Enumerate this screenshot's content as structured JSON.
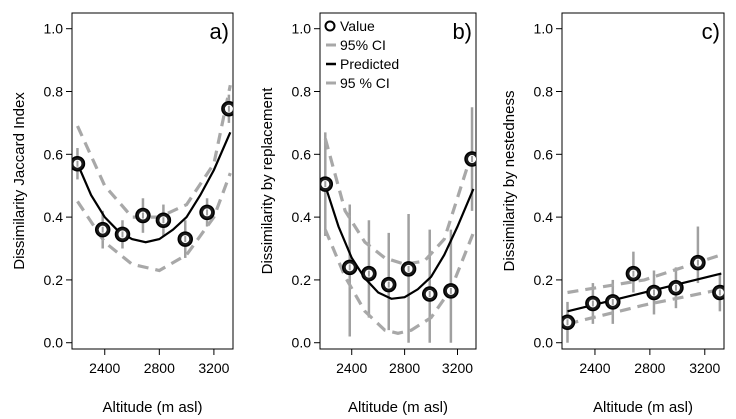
{
  "chart_data": [
    {
      "type": "scatter",
      "panel_label": "a)",
      "xlabel": "Altitude (m asl)",
      "ylabel": "Dissimilarity Jaccard Index",
      "xlim": [
        2160,
        3340
      ],
      "ylim": [
        -0.02,
        1.05
      ],
      "xticks": [
        2400,
        2800,
        3200
      ],
      "yticks": [
        0.0,
        0.2,
        0.4,
        0.6,
        0.8,
        1.0
      ],
      "ytick_labels": [
        "0.0",
        "0.2",
        "0.4",
        "0.6",
        "0.8",
        "1.0"
      ],
      "points": {
        "x": [
          2200,
          2385,
          2530,
          2680,
          2830,
          2990,
          3150,
          3310
        ],
        "y": [
          0.57,
          0.36,
          0.345,
          0.405,
          0.39,
          0.33,
          0.415,
          0.745
        ],
        "err_low": [
          0.52,
          0.3,
          0.3,
          0.35,
          0.34,
          0.27,
          0.37,
          0.7
        ],
        "err_high": [
          0.62,
          0.42,
          0.39,
          0.46,
          0.44,
          0.39,
          0.46,
          0.79
        ]
      },
      "ci_95": {
        "x": [
          2200,
          2400,
          2600,
          2800,
          3000,
          3200,
          3320
        ],
        "y": [
          0.69,
          0.5,
          0.4,
          0.4,
          0.44,
          0.57,
          0.82
        ]
      },
      "predicted": {
        "x": [
          2200,
          2300,
          2400,
          2500,
          2600,
          2700,
          2800,
          2900,
          3000,
          3100,
          3200,
          3320
        ],
        "y": [
          0.57,
          0.47,
          0.4,
          0.355,
          0.33,
          0.32,
          0.33,
          0.36,
          0.4,
          0.47,
          0.55,
          0.67
        ]
      },
      "ci_95_b": {
        "x": [
          2200,
          2400,
          2600,
          2800,
          3000,
          3200,
          3320
        ],
        "y": [
          0.45,
          0.32,
          0.25,
          0.23,
          0.28,
          0.4,
          0.54
        ]
      }
    },
    {
      "type": "scatter",
      "panel_label": "b)",
      "xlabel": "Altitude (m asl)",
      "ylabel": "Dissimilarity by replacement",
      "xlim": [
        2160,
        3340
      ],
      "ylim": [
        -0.02,
        1.05
      ],
      "xticks": [
        2400,
        2800,
        3200
      ],
      "yticks": [
        0.0,
        0.2,
        0.4,
        0.6,
        0.8,
        1.0
      ],
      "ytick_labels": [
        "0.0",
        "0.2",
        "0.4",
        "0.6",
        "0.8",
        "1.0"
      ],
      "legend": {
        "position": "top-left",
        "entries": [
          "Value",
          "95% CI",
          "Predicted",
          "95 % CI"
        ]
      },
      "points": {
        "x": [
          2200,
          2385,
          2530,
          2680,
          2830,
          2990,
          3150,
          3310
        ],
        "y": [
          0.505,
          0.24,
          0.22,
          0.185,
          0.235,
          0.155,
          0.165,
          0.585
        ],
        "err_low": [
          0.34,
          0.02,
          0.08,
          0.04,
          0.0,
          0.0,
          0.0,
          0.42
        ],
        "err_high": [
          0.67,
          0.44,
          0.39,
          0.35,
          0.41,
          0.36,
          0.36,
          0.75
        ]
      },
      "ci_95": {
        "x": [
          2200,
          2350,
          2500,
          2650,
          2800,
          2950,
          3100,
          3320
        ],
        "y": [
          0.65,
          0.42,
          0.32,
          0.27,
          0.25,
          0.26,
          0.33,
          0.62
        ]
      },
      "predicted": {
        "x": [
          2200,
          2300,
          2400,
          2500,
          2600,
          2700,
          2800,
          2900,
          3000,
          3100,
          3200,
          3320
        ],
        "y": [
          0.5,
          0.37,
          0.27,
          0.205,
          0.16,
          0.14,
          0.145,
          0.17,
          0.21,
          0.28,
          0.37,
          0.49
        ]
      },
      "ci_95_b": {
        "x": [
          2200,
          2350,
          2500,
          2650,
          2750,
          2850,
          3000,
          3150,
          3320
        ],
        "y": [
          0.36,
          0.21,
          0.1,
          0.04,
          0.03,
          0.04,
          0.08,
          0.17,
          0.35
        ]
      }
    },
    {
      "type": "scatter",
      "panel_label": "c)",
      "xlabel": "Altitude (m asl)",
      "ylabel": "Dissimilarity by  nestedness",
      "xlim": [
        2160,
        3340
      ],
      "ylim": [
        -0.02,
        1.05
      ],
      "xticks": [
        2400,
        2800,
        3200
      ],
      "yticks": [
        0.0,
        0.2,
        0.4,
        0.6,
        0.8,
        1.0
      ],
      "ytick_labels": [
        "0.0",
        "0.2",
        "0.4",
        "0.6",
        "0.8",
        "1.0"
      ],
      "points": {
        "x": [
          2200,
          2385,
          2530,
          2680,
          2830,
          2990,
          3150,
          3310
        ],
        "y": [
          0.065,
          0.125,
          0.13,
          0.22,
          0.16,
          0.175,
          0.255,
          0.16
        ],
        "err_low": [
          0.0,
          0.06,
          0.06,
          0.16,
          0.09,
          0.11,
          0.19,
          0.1
        ],
        "err_high": [
          0.13,
          0.19,
          0.2,
          0.29,
          0.23,
          0.24,
          0.37,
          0.22
        ]
      },
      "ci_95": {
        "x": [
          2200,
          2760,
          3320
        ],
        "y": [
          0.16,
          0.2,
          0.28
        ]
      },
      "predicted": {
        "x": [
          2200,
          3320
        ],
        "y": [
          0.1,
          0.22
        ]
      },
      "ci_95_b": {
        "x": [
          2200,
          2760,
          3320
        ],
        "y": [
          0.06,
          0.12,
          0.17
        ]
      }
    }
  ]
}
